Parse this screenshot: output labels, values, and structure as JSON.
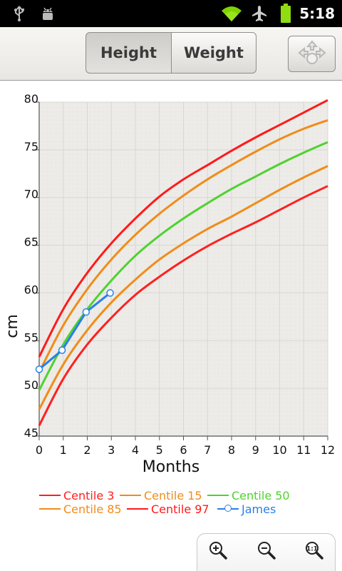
{
  "statusbar": {
    "time": "5:18",
    "icons": [
      "usb-icon",
      "android-debug-icon",
      "wifi-icon",
      "airplane-icon",
      "battery-icon"
    ]
  },
  "toolbar": {
    "tabs": [
      {
        "label": "Height",
        "selected": true
      },
      {
        "label": "Weight",
        "selected": false
      }
    ],
    "nav_button_icon": "navigation-arrows-icon"
  },
  "chart_data": {
    "type": "line",
    "title": "",
    "xlabel": "Months",
    "ylabel": "cm",
    "xlim": [
      0,
      12
    ],
    "ylim": [
      45,
      80
    ],
    "xticks": [
      "0",
      "1",
      "2",
      "3",
      "4",
      "5",
      "6",
      "7",
      "8",
      "9",
      "10",
      "11",
      "12"
    ],
    "yticks": [
      "45",
      "50",
      "55",
      "60",
      "65",
      "70",
      "75",
      "80"
    ],
    "grid": true,
    "legend_position": "bottom",
    "series": [
      {
        "name": "Centile 3",
        "color": "#ff2020",
        "x": [
          0,
          1,
          2,
          3,
          4,
          5,
          6,
          7,
          8,
          9,
          10,
          11,
          12
        ],
        "y": [
          46.1,
          51.0,
          54.6,
          57.4,
          59.8,
          61.7,
          63.4,
          64.9,
          66.2,
          67.4,
          68.7,
          70.0,
          71.2
        ]
      },
      {
        "name": "Centile 15",
        "color": "#f08c1a",
        "x": [
          0,
          1,
          2,
          3,
          4,
          5,
          6,
          7,
          8,
          9,
          10,
          11,
          12
        ],
        "y": [
          47.8,
          52.5,
          56.1,
          59.0,
          61.4,
          63.5,
          65.2,
          66.7,
          68.0,
          69.4,
          70.8,
          72.1,
          73.3
        ]
      },
      {
        "name": "Centile 50",
        "color": "#4fd22f",
        "x": [
          0,
          1,
          2,
          3,
          4,
          5,
          6,
          7,
          8,
          9,
          10,
          11,
          12
        ],
        "y": [
          49.8,
          54.6,
          58.3,
          61.3,
          63.9,
          66.0,
          67.8,
          69.4,
          70.9,
          72.2,
          73.5,
          74.7,
          75.8
        ]
      },
      {
        "name": "Centile 85",
        "color": "#f08c1a",
        "x": [
          0,
          1,
          2,
          3,
          4,
          5,
          6,
          7,
          8,
          9,
          10,
          11,
          12
        ],
        "y": [
          51.7,
          56.6,
          60.4,
          63.5,
          66.1,
          68.3,
          70.2,
          71.9,
          73.4,
          74.8,
          76.1,
          77.2,
          78.1
        ]
      },
      {
        "name": "Centile 97",
        "color": "#ff1a1a",
        "x": [
          0,
          1,
          2,
          3,
          4,
          5,
          6,
          7,
          8,
          9,
          10,
          11,
          12
        ],
        "y": [
          53.3,
          58.3,
          62.1,
          65.2,
          67.8,
          70.1,
          71.9,
          73.4,
          74.9,
          76.3,
          77.6,
          78.9,
          80.2
        ]
      },
      {
        "name": "James",
        "color": "#2a7fe8",
        "markers": true,
        "x": [
          0,
          0.95,
          1.95,
          2.95
        ],
        "y": [
          52.0,
          54.0,
          58.0,
          60.0
        ]
      }
    ]
  },
  "zoom": {
    "buttons": [
      "zoom-in-icon",
      "zoom-out-icon",
      "zoom-reset-icon"
    ]
  }
}
